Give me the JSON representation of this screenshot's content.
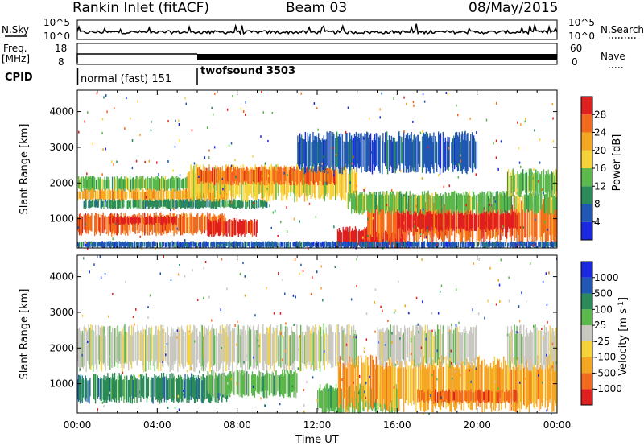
{
  "header": {
    "station": "Rankin Inlet (fitACF)",
    "beam": "Beam 03",
    "date": "08/May/2015"
  },
  "top_panels": {
    "nsky_label": "N.Sky",
    "nsky_ticks": [
      "10^5",
      "10^0"
    ],
    "nsearch_label": "N.Search",
    "nsearch_ticks": [
      "10^5",
      "10^0"
    ],
    "freq_label_1": "Freq.",
    "freq_label_2": "[MHz]",
    "freq_ticks": [
      "18",
      "8"
    ],
    "nave_label": "Nave",
    "nave_ticks": [
      "60",
      "0"
    ],
    "cpid_label": "CPID",
    "cpid_modes": [
      {
        "label": "normal (fast) 151",
        "start_hour": 0.0
      },
      {
        "label": "twofsound 3503",
        "start_hour": 6.0
      }
    ]
  },
  "chart_data": [
    {
      "type": "heatmap",
      "name": "power",
      "ylabel": "Slant Range [km]",
      "xlabel": "",
      "y_ticks": [
        1000,
        2000,
        3000,
        4000
      ],
      "ylim": [
        180,
        4600
      ],
      "xlim_hours": [
        0,
        24
      ],
      "colorbar_label": "Power [dB]",
      "colorbar_ticks": [
        "4",
        "8",
        "12",
        "16",
        "20",
        "24",
        "28"
      ],
      "colors": [
        "#1a28e0",
        "#1f58b4",
        "#2a8a58",
        "#5bb84a",
        "#f7d33a",
        "#f5a623",
        "#f26a1b",
        "#e01f1f"
      ],
      "bands": [
        {
          "t0": 0.0,
          "t1": 7.8,
          "r0": 1800,
          "r1": 2150,
          "level": 3
        },
        {
          "t0": 0.0,
          "t1": 7.5,
          "r0": 1520,
          "r1": 1800,
          "level": 5
        },
        {
          "t0": 0.3,
          "t1": 9.5,
          "r0": 1300,
          "r1": 1520,
          "level": 2
        },
        {
          "t0": 5.5,
          "t1": 14.0,
          "r0": 1600,
          "r1": 2400,
          "level": 4
        },
        {
          "t0": 6.0,
          "t1": 13.0,
          "r0": 2000,
          "r1": 2400,
          "level": 6
        },
        {
          "t0": 0.0,
          "t1": 7.5,
          "r0": 600,
          "r1": 1100,
          "level": 6
        },
        {
          "t0": 1.5,
          "t1": 5.0,
          "r0": 850,
          "r1": 1050,
          "level": 7
        },
        {
          "t0": 6.5,
          "t1": 9.0,
          "r0": 550,
          "r1": 950,
          "level": 7
        },
        {
          "t0": 13.0,
          "t1": 16.5,
          "r0": 200,
          "r1": 700,
          "level": 7
        },
        {
          "t0": 14.5,
          "t1": 24.0,
          "r0": 450,
          "r1": 1500,
          "level": 6
        },
        {
          "t0": 16.0,
          "t1": 22.0,
          "r0": 700,
          "r1": 1150,
          "level": 7
        },
        {
          "t0": 13.5,
          "t1": 24.0,
          "r0": 1200,
          "r1": 1700,
          "level": 3
        },
        {
          "t0": 21.5,
          "t1": 24.0,
          "r0": 1700,
          "r1": 2300,
          "level": 3
        },
        {
          "t0": 11.0,
          "t1": 20.0,
          "r0": 2400,
          "r1": 3300,
          "level": 1
        },
        {
          "t0": 0.0,
          "t1": 24.0,
          "r0": 200,
          "r1": 350,
          "level": 1
        }
      ]
    },
    {
      "type": "heatmap",
      "name": "velocity",
      "ylabel": "Slant Range [km]",
      "xlabel": "Time UT",
      "x_ticks": [
        "00:00",
        "04:00",
        "08:00",
        "12:00",
        "16:00",
        "20:00",
        "00:00"
      ],
      "y_ticks": [
        1000,
        2000,
        3000,
        4000
      ],
      "ylim": [
        180,
        4600
      ],
      "xlim_hours": [
        0,
        24
      ],
      "colorbar_label": "Velocity [m s^-1]",
      "colorbar_ticks": [
        "1000",
        "500",
        "100",
        "25",
        "-25",
        "-100",
        "-500",
        "-1000"
      ],
      "colors": [
        "#e01f1f",
        "#f26a1b",
        "#f5a623",
        "#f7d33a",
        "#c8c8c0",
        "#5bb84a",
        "#2a8a58",
        "#1f58b4",
        "#1a28e0"
      ],
      "bands": [
        {
          "t0": 0.0,
          "t1": 14.0,
          "r0": 1500,
          "r1": 2500,
          "level": 4
        },
        {
          "t0": 0.0,
          "t1": 7.6,
          "r0": 550,
          "r1": 1200,
          "level": 6
        },
        {
          "t0": 6.5,
          "t1": 11.0,
          "r0": 700,
          "r1": 1300,
          "level": 5
        },
        {
          "t0": 12.0,
          "t1": 16.0,
          "r0": 250,
          "r1": 900,
          "level": 5
        },
        {
          "t0": 13.0,
          "t1": 24.0,
          "r0": 400,
          "r1": 1600,
          "level": 2
        },
        {
          "t0": 17.0,
          "t1": 22.0,
          "r0": 500,
          "r1": 800,
          "level": 1
        },
        {
          "t0": 21.5,
          "t1": 24.0,
          "r0": 1500,
          "r1": 2500,
          "level": 4
        },
        {
          "t0": 15.0,
          "t1": 20.0,
          "r0": 1600,
          "r1": 2500,
          "level": 4
        }
      ]
    }
  ]
}
